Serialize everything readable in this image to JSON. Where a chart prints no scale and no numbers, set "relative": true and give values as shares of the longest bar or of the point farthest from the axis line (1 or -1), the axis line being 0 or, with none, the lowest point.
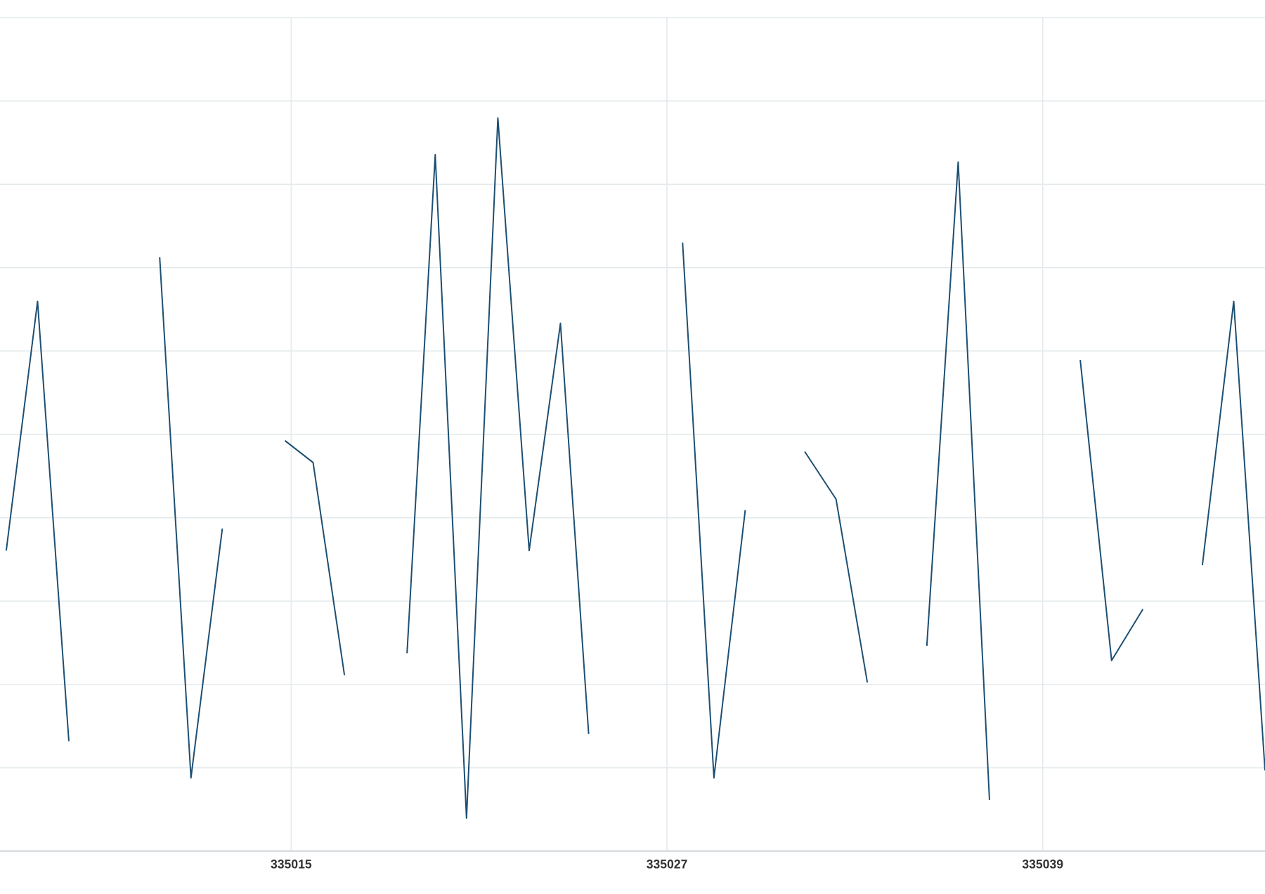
{
  "chart_data": {
    "type": "line",
    "relative": true,
    "x": [
      335005.9,
      335006.9,
      335007.9,
      335008.9,
      335009.9,
      335010.8,
      335011.8,
      335012.8,
      335013.8,
      335014.8,
      335015.7,
      335016.7,
      335017.7,
      335018.7,
      335019.6,
      335020.6,
      335021.6,
      335022.6,
      335023.6,
      335024.5,
      335025.5,
      335026.5,
      335027.5,
      335028.5,
      335029.5,
      335030.4,
      335031.4,
      335032.4,
      335033.4,
      335034.3,
      335035.3,
      335036.3,
      335037.3,
      335038.3,
      335039.2,
      335040.2,
      335041.2,
      335042.2,
      335043.2,
      335044.1,
      335045.1,
      335046.1
    ],
    "series": [
      {
        "color": "#1d4f73",
        "values": [
          0.41,
          0.75,
          0.15,
          null,
          null,
          0.81,
          0.1,
          0.44,
          null,
          0.56,
          0.53,
          0.24,
          null,
          0.27,
          0.95,
          0.045,
          1.0,
          0.41,
          0.72,
          0.16,
          null,
          null,
          0.83,
          0.1,
          0.465,
          null,
          0.545,
          0.48,
          0.23,
          null,
          0.28,
          0.94,
          0.07,
          null,
          null,
          0.67,
          0.26,
          0.33,
          null,
          0.39,
          0.75,
          0.11
        ]
      }
    ],
    "xlim": [
      335005.7,
      335046.1
    ],
    "xticks": [
      335015,
      335027,
      335039
    ],
    "grid": true
  }
}
